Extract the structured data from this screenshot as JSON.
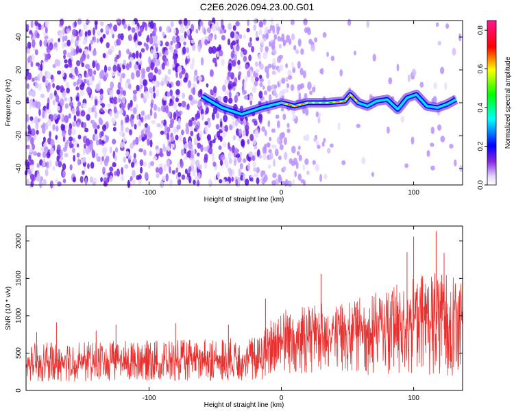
{
  "title": "C2E6.2026.094.23.00.G01",
  "chart_data": [
    {
      "type": "heatmap",
      "title": "C2E6.2026.094.23.00.G01",
      "xlabel": "Height of straight line (km)",
      "ylabel": "Frequency (Hz)",
      "xlim": [
        -193,
        137
      ],
      "ylim": [
        -50,
        50
      ],
      "xticks": [
        -100,
        0,
        100
      ],
      "xtick_labels": [
        "-100",
        "0",
        "100"
      ],
      "yticks": [
        -40,
        -20,
        0,
        20,
        40
      ],
      "ytick_labels": [
        "-40",
        "-20",
        "0",
        "20",
        "40"
      ],
      "colorbar": {
        "label": "Normalized spectral amplitude",
        "range": [
          0.0,
          0.85
        ],
        "ticks": [
          0.0,
          0.2,
          0.4,
          0.6,
          0.8
        ],
        "tick_labels": [
          "0.0",
          "0.2",
          "0.4",
          "0.6",
          "0.8"
        ],
        "colors": [
          "#ffffff",
          "#e6d8ff",
          "#8a2be2",
          "#4b00ff",
          "#0000ff",
          "#00ffff",
          "#00ff00",
          "#ffff00",
          "#ff8800",
          "#ff0000",
          "#ff1493"
        ]
      },
      "ridge": [
        {
          "x": -60,
          "y": 4
        },
        {
          "x": -45,
          "y": -3
        },
        {
          "x": -30,
          "y": -7
        },
        {
          "x": -15,
          "y": -3
        },
        {
          "x": 0,
          "y": 0
        },
        {
          "x": 10,
          "y": -2
        },
        {
          "x": 20,
          "y": 0
        },
        {
          "x": 35,
          "y": 0
        },
        {
          "x": 48,
          "y": 1
        },
        {
          "x": 52,
          "y": 5
        },
        {
          "x": 58,
          "y": 0
        },
        {
          "x": 65,
          "y": -2
        },
        {
          "x": 72,
          "y": 1
        },
        {
          "x": 80,
          "y": 2
        },
        {
          "x": 88,
          "y": -4
        },
        {
          "x": 95,
          "y": 3
        },
        {
          "x": 102,
          "y": 5
        },
        {
          "x": 110,
          "y": -2
        },
        {
          "x": 118,
          "y": -3
        },
        {
          "x": 125,
          "y": -1
        },
        {
          "x": 132,
          "y": 2
        }
      ]
    },
    {
      "type": "line",
      "xlabel": "Height of straight line (km)",
      "ylabel": "SNR (10 * v/v)",
      "xlim": [
        -193,
        137
      ],
      "ylim": [
        0,
        2200
      ],
      "xticks": [
        -100,
        0,
        100
      ],
      "xtick_labels": [
        "-100",
        "0",
        "100"
      ],
      "yticks": [
        0,
        500,
        1000,
        1500,
        2000
      ],
      "ytick_labels": [
        "0",
        "500",
        "1000",
        "1500",
        "2000"
      ],
      "color": "#e8302e",
      "envelope": [
        {
          "x": -193,
          "median": 300,
          "upper": 600,
          "lower": 120
        },
        {
          "x": -150,
          "median": 310,
          "upper": 620,
          "lower": 120
        },
        {
          "x": -100,
          "median": 330,
          "upper": 640,
          "lower": 130
        },
        {
          "x": -50,
          "median": 340,
          "upper": 660,
          "lower": 130
        },
        {
          "x": -15,
          "median": 360,
          "upper": 700,
          "lower": 140
        },
        {
          "x": -5,
          "median": 600,
          "upper": 1050,
          "lower": 220
        },
        {
          "x": 20,
          "median": 630,
          "upper": 1100,
          "lower": 220
        },
        {
          "x": 50,
          "median": 680,
          "upper": 1150,
          "lower": 220
        },
        {
          "x": 80,
          "median": 760,
          "upper": 1300,
          "lower": 200
        },
        {
          "x": 100,
          "median": 800,
          "upper": 1450,
          "lower": 200
        },
        {
          "x": 120,
          "median": 820,
          "upper": 1550,
          "lower": 200
        },
        {
          "x": 137,
          "median": 820,
          "upper": 1500,
          "lower": 200
        }
      ],
      "peaks": [
        {
          "x": -185,
          "y": 780
        },
        {
          "x": -170,
          "y": 910
        },
        {
          "x": -140,
          "y": 800
        },
        {
          "x": -125,
          "y": 880
        },
        {
          "x": -80,
          "y": 900
        },
        {
          "x": -40,
          "y": 880
        },
        {
          "x": -12,
          "y": 1230
        },
        {
          "x": 30,
          "y": 1560
        },
        {
          "x": 95,
          "y": 1850
        },
        {
          "x": 100,
          "y": 2060
        },
        {
          "x": 117,
          "y": 2130
        },
        {
          "x": 123,
          "y": 1840
        }
      ]
    }
  ]
}
